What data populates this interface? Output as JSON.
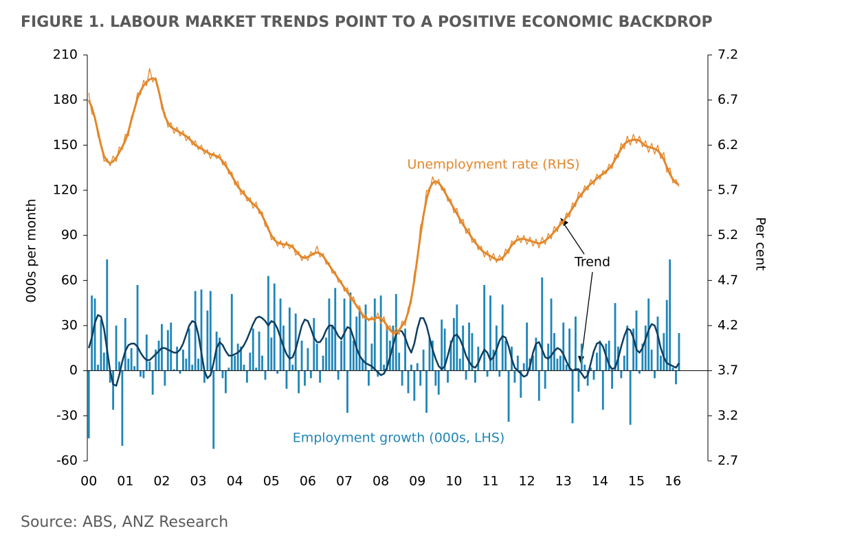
{
  "chart_data": {
    "type": "bar-line",
    "title": "FIGURE 1. LABOUR MARKET TRENDS POINT TO A POSITIVE ECONOMIC BACKDROP",
    "source": "Source: ABS, ANZ Research",
    "ylabel": "000s per month",
    "y2label": "Per cent",
    "annotation": "Trend",
    "ylim": [
      -60,
      210
    ],
    "yticks": [
      -60,
      -30,
      0,
      30,
      60,
      90,
      120,
      150,
      180,
      210
    ],
    "y2lim": [
      2.7,
      7.2
    ],
    "y2ticks": [
      2.7,
      3.2,
      3.7,
      4.2,
      4.7,
      5.2,
      5.7,
      6.2,
      6.7,
      7.2
    ],
    "categories": [
      "00",
      null,
      null,
      null,
      null,
      null,
      null,
      null,
      null,
      null,
      null,
      null,
      "01",
      null,
      null,
      null,
      null,
      null,
      null,
      null,
      null,
      null,
      null,
      null,
      "02",
      null,
      null,
      null,
      null,
      null,
      null,
      null,
      null,
      null,
      null,
      null,
      "03",
      null,
      null,
      null,
      null,
      null,
      null,
      null,
      null,
      null,
      null,
      null,
      "04",
      null,
      null,
      null,
      null,
      null,
      null,
      null,
      null,
      null,
      null,
      null,
      "05",
      null,
      null,
      null,
      null,
      null,
      null,
      null,
      null,
      null,
      null,
      null,
      "06",
      null,
      null,
      null,
      null,
      null,
      null,
      null,
      null,
      null,
      null,
      null,
      "07",
      null,
      null,
      null,
      null,
      null,
      null,
      null,
      null,
      null,
      null,
      null,
      "08",
      null,
      null,
      null,
      null,
      null,
      null,
      null,
      null,
      null,
      null,
      null,
      "09",
      null,
      null,
      null,
      null,
      null,
      null,
      null,
      null,
      null,
      null,
      null,
      "10",
      null,
      null,
      null,
      null,
      null,
      null,
      null,
      null,
      null,
      null,
      null,
      "11",
      null,
      null,
      null,
      null,
      null,
      null,
      null,
      null,
      null,
      null,
      null,
      "12",
      null,
      null,
      null,
      null,
      null,
      null,
      null,
      null,
      null,
      null,
      null,
      "13",
      null,
      null,
      null,
      null,
      null,
      null,
      null,
      null,
      null,
      null,
      null,
      "14",
      null,
      null,
      null,
      null,
      null,
      null,
      null,
      null,
      null,
      null,
      null,
      "15",
      null,
      null,
      null,
      null,
      null,
      null,
      null,
      null,
      null,
      null,
      null,
      "16",
      null,
      null
    ],
    "series": [
      {
        "name": "Employment growth (000s, LHS)",
        "type": "bar",
        "axis": "y",
        "color": "#1f86b8",
        "values": [
          -45,
          50,
          48,
          4,
          34,
          12,
          74,
          -8,
          -26,
          30,
          6,
          -50,
          35,
          8,
          15,
          3,
          57,
          -4,
          -5,
          24,
          6,
          -16,
          14,
          20,
          31,
          -10,
          27,
          32,
          1,
          16,
          -2,
          14,
          8,
          28,
          4,
          53,
          8,
          54,
          -8,
          40,
          53,
          -52,
          26,
          22,
          -5,
          -15,
          2,
          51,
          10,
          18,
          16,
          4,
          -8,
          12,
          28,
          2,
          26,
          10,
          -6,
          63,
          22,
          58,
          -2,
          48,
          30,
          -12,
          42,
          4,
          38,
          -15,
          20,
          -10,
          15,
          -5,
          35,
          18,
          -8,
          10,
          22,
          48,
          30,
          55,
          -6,
          20,
          48,
          -28,
          52,
          20,
          36,
          42,
          8,
          44,
          -10,
          18,
          48,
          -4,
          50,
          4,
          30,
          20,
          30,
          51,
          12,
          -10,
          28,
          -15,
          4,
          -20,
          5,
          -10,
          14,
          -28,
          22,
          20,
          -10,
          -16,
          34,
          28,
          -8,
          20,
          35,
          44,
          8,
          30,
          -6,
          32,
          25,
          -8,
          16,
          0,
          57,
          -4,
          50,
          14,
          30,
          -4,
          44,
          20,
          -34,
          16,
          -8,
          10,
          -18,
          5,
          32,
          8,
          10,
          22,
          -20,
          62,
          -12,
          18,
          48,
          25,
          8,
          10,
          32,
          4,
          28,
          -35,
          36,
          -14,
          18,
          4,
          -10,
          2,
          -6,
          12,
          20,
          -26,
          18,
          20,
          -12,
          45,
          16,
          -5,
          10,
          30,
          -36,
          28,
          40,
          -2,
          18,
          30,
          48,
          14,
          -5,
          36,
          10,
          25,
          47,
          74,
          2,
          -9,
          25
        ]
      },
      {
        "type": "line",
        "axis": "y",
        "color": "#0e3d5e",
        "width": 2.5,
        "values": [
          15,
          22,
          32,
          37,
          36,
          28,
          14,
          0,
          -9,
          -10,
          -3,
          6,
          13,
          17,
          18,
          18,
          16,
          12,
          9,
          7,
          7,
          9,
          11,
          13,
          15,
          15,
          14,
          13,
          12,
          12,
          14,
          18,
          24,
          30,
          33,
          32,
          24,
          12,
          0,
          -5,
          -3,
          5,
          15,
          19,
          17,
          13,
          10,
          10,
          11,
          12,
          14,
          17,
          21,
          26,
          31,
          35,
          36,
          35,
          33,
          30,
          33,
          32,
          28,
          22,
          16,
          11,
          8,
          9,
          14,
          22,
          30,
          34,
          33,
          28,
          22,
          19,
          19,
          22,
          27,
          30,
          30,
          27,
          23,
          21,
          25,
          29,
          28,
          22,
          15,
          10,
          7,
          5,
          4,
          3,
          1,
          -1,
          -3,
          -2,
          2,
          9,
          17,
          24,
          27,
          26,
          22,
          16,
          12,
          18,
          28,
          35,
          35,
          30,
          22,
          14,
          8,
          3,
          1,
          3,
          10,
          18,
          23,
          24,
          21,
          16,
          10,
          6,
          3,
          2,
          5,
          10,
          14,
          12,
          7,
          9,
          14,
          20,
          23,
          22,
          16,
          8,
          2,
          0,
          -2,
          -4,
          -3,
          3,
          12,
          18,
          19,
          14,
          9,
          8,
          10,
          13,
          15,
          14,
          11,
          6,
          2,
          0,
          1,
          1,
          -2,
          -5,
          -3,
          5,
          13,
          18,
          19,
          16,
          10,
          4,
          1,
          2,
          8,
          16,
          23,
          28,
          27,
          22,
          14,
          12,
          15,
          21,
          27,
          31,
          30,
          24,
          15,
          9,
          5,
          4,
          3,
          2,
          5
        ]
      },
      {
        "name": "Unemployment rate (RHS)",
        "type": "line",
        "axis": "y2",
        "color": "#e2872b",
        "width": 1.3,
        "values": [
          6.78,
          6.55,
          6.52,
          6.3,
          6.22,
          6.02,
          6.05,
          5.97,
          6.08,
          6.02,
          6.18,
          6.15,
          6.32,
          6.3,
          6.52,
          6.58,
          6.78,
          6.76,
          6.92,
          6.86,
          7.05,
          6.9,
          6.95,
          6.82,
          6.6,
          6.56,
          6.4,
          6.45,
          6.33,
          6.4,
          6.3,
          6.36,
          6.25,
          6.3,
          6.2,
          6.25,
          6.15,
          6.2,
          6.1,
          6.15,
          6.05,
          6.12,
          6.05,
          6.1,
          5.98,
          6.02,
          5.88,
          5.9,
          5.76,
          5.8,
          5.65,
          5.7,
          5.58,
          5.62,
          5.5,
          5.57,
          5.44,
          5.46,
          5.3,
          5.3,
          5.15,
          5.18,
          5.08,
          5.14,
          5.06,
          5.13,
          5.05,
          5.1,
          4.98,
          5.02,
          4.92,
          4.98,
          4.92,
          5.02,
          4.98,
          5.08,
          4.96,
          5.0,
          4.88,
          4.9,
          4.78,
          4.8,
          4.68,
          4.7,
          4.58,
          4.62,
          4.48,
          4.52,
          4.4,
          4.42,
          4.28,
          4.32,
          4.25,
          4.3,
          4.24,
          4.34,
          4.22,
          4.3,
          4.15,
          4.2,
          4.08,
          4.18,
          4.1,
          4.25,
          4.2,
          4.4,
          4.45,
          4.78,
          4.9,
          5.3,
          5.4,
          5.7,
          5.68,
          5.85,
          5.76,
          5.82,
          5.7,
          5.72,
          5.58,
          5.6,
          5.45,
          5.5,
          5.33,
          5.38,
          5.22,
          5.28,
          5.12,
          5.16,
          5.04,
          5.08,
          4.96,
          5.03,
          4.92,
          5.0,
          4.9,
          4.98,
          4.92,
          5.05,
          5.0,
          5.14,
          5.1,
          5.2,
          5.12,
          5.2,
          5.1,
          5.18,
          5.08,
          5.16,
          5.06,
          5.18,
          5.1,
          5.22,
          5.16,
          5.3,
          5.24,
          5.36,
          5.32,
          5.45,
          5.4,
          5.56,
          5.52,
          5.68,
          5.62,
          5.75,
          5.7,
          5.82,
          5.76,
          5.88,
          5.82,
          5.92,
          5.88,
          5.99,
          5.94,
          6.1,
          6.06,
          6.22,
          6.16,
          6.3,
          6.2,
          6.32,
          6.22,
          6.3,
          6.18,
          6.25,
          6.12,
          6.22,
          6.1,
          6.2,
          6.05,
          6.12,
          5.9,
          5.95,
          5.78,
          5.82,
          5.74
        ]
      },
      {
        "type": "line",
        "axis": "y2",
        "color": "#e2872b",
        "width": 3,
        "values": [
          6.7,
          6.62,
          6.5,
          6.35,
          6.2,
          6.08,
          6.02,
          6.0,
          6.02,
          6.06,
          6.12,
          6.18,
          6.25,
          6.35,
          6.48,
          6.6,
          6.72,
          6.8,
          6.86,
          6.9,
          6.93,
          6.94,
          6.93,
          6.8,
          6.65,
          6.52,
          6.45,
          6.4,
          6.38,
          6.36,
          6.34,
          6.32,
          6.3,
          6.27,
          6.24,
          6.2,
          6.18,
          6.16,
          6.14,
          6.12,
          6.1,
          6.09,
          6.08,
          6.06,
          6.02,
          5.97,
          5.92,
          5.86,
          5.8,
          5.74,
          5.7,
          5.66,
          5.62,
          5.58,
          5.55,
          5.52,
          5.48,
          5.42,
          5.35,
          5.27,
          5.2,
          5.15,
          5.12,
          5.11,
          5.1,
          5.1,
          5.09,
          5.07,
          5.03,
          4.99,
          4.96,
          4.95,
          4.96,
          4.98,
          5.0,
          5.01,
          5.0,
          4.97,
          4.92,
          4.87,
          4.82,
          4.77,
          4.72,
          4.67,
          4.62,
          4.57,
          4.52,
          4.47,
          4.42,
          4.37,
          4.32,
          4.28,
          4.27,
          4.27,
          4.28,
          4.29,
          4.28,
          4.25,
          4.2,
          4.15,
          4.12,
          4.12,
          4.15,
          4.2,
          4.25,
          4.35,
          4.5,
          4.7,
          4.95,
          5.2,
          5.42,
          5.6,
          5.72,
          5.78,
          5.8,
          5.78,
          5.74,
          5.68,
          5.62,
          5.56,
          5.5,
          5.44,
          5.38,
          5.32,
          5.27,
          5.22,
          5.17,
          5.12,
          5.08,
          5.04,
          5.01,
          4.99,
          4.97,
          4.95,
          4.93,
          4.93,
          4.95,
          4.99,
          5.04,
          5.09,
          5.13,
          5.15,
          5.16,
          5.16,
          5.15,
          5.14,
          5.13,
          5.12,
          5.11,
          5.12,
          5.14,
          5.17,
          5.2,
          5.24,
          5.28,
          5.32,
          5.36,
          5.4,
          5.45,
          5.5,
          5.56,
          5.62,
          5.66,
          5.7,
          5.74,
          5.77,
          5.8,
          5.83,
          5.86,
          5.88,
          5.91,
          5.94,
          5.98,
          6.04,
          6.1,
          6.16,
          6.21,
          6.24,
          6.25,
          6.26,
          6.26,
          6.25,
          6.22,
          6.19,
          6.18,
          6.17,
          6.16,
          6.14,
          6.1,
          6.04,
          5.96,
          5.88,
          5.82,
          5.78,
          5.76
        ]
      }
    ]
  }
}
